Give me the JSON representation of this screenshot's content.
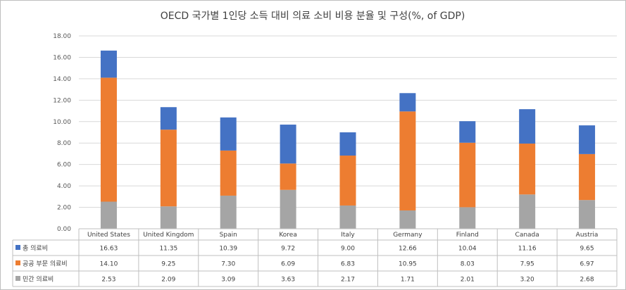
{
  "chart_data": {
    "type": "bar",
    "subtype": "stacked-with-data-table",
    "title": "OECD 국가별 1인당 소득 대비 의료 소비 비용 분율 및 구성(%, of GDP)",
    "categories": [
      "United States",
      "United Kingdom",
      "Spain",
      "Korea",
      "Italy",
      "Germany",
      "Finland",
      "Canada",
      "Austria"
    ],
    "ylim": [
      0,
      18
    ],
    "yticks": [
      "0.00",
      "2.00",
      "4.00",
      "6.00",
      "8.00",
      "10.00",
      "12.00",
      "14.00",
      "16.00",
      "18.00"
    ],
    "grid": true,
    "series": [
      {
        "name": "총 의료비",
        "color": "#4472c4",
        "values": [
          16.63,
          11.35,
          10.39,
          9.72,
          9.0,
          12.66,
          10.04,
          11.16,
          9.65
        ],
        "labels": [
          "16.63",
          "11.35",
          "10.39",
          "9.72",
          "9.00",
          "12.66",
          "10.04",
          "11.16",
          "9.65"
        ]
      },
      {
        "name": "공공 부문 의료비",
        "color": "#ed7d31",
        "values": [
          14.1,
          9.25,
          7.3,
          6.09,
          6.83,
          10.95,
          8.03,
          7.95,
          6.97
        ],
        "labels": [
          "14.10",
          "9.25",
          "7.30",
          "6.09",
          "6.83",
          "10.95",
          "8.03",
          "7.95",
          "6.97"
        ]
      },
      {
        "name": "민간 의료비",
        "color": "#a5a5a5",
        "values": [
          2.53,
          2.09,
          3.09,
          3.63,
          2.17,
          1.71,
          2.01,
          3.2,
          2.68
        ],
        "labels": [
          "2.53",
          "2.09",
          "3.09",
          "3.63",
          "2.17",
          "1.71",
          "2.01",
          "3.20",
          "2.68"
        ]
      }
    ]
  }
}
